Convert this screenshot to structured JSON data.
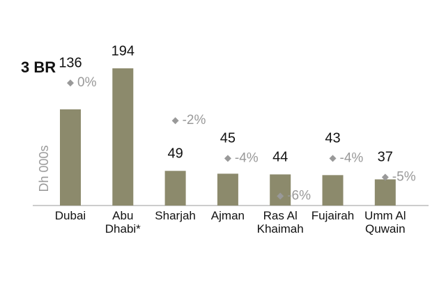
{
  "chart_data": {
    "type": "bar",
    "title": "3 BR",
    "y_label": "Dh 000s",
    "categories": [
      "Dubai",
      "Abu\nDhabi*",
      "Sharjah",
      "Ajman",
      "Ras Al\nKhaimah",
      "Fujairah",
      "Umm Al\nQuwain"
    ],
    "series": [
      {
        "values": [
          136,
          194,
          49,
          45,
          44,
          43,
          37
        ],
        "color": "#8c8a6c"
      },
      {
        "values": [
          0,
          null,
          -2,
          -4,
          -6,
          -4,
          -5
        ],
        "value_labels": [
          "0%",
          null,
          "-2%",
          "-4%",
          "-6%",
          "-4%",
          "-5%"
        ],
        "color": "#999999",
        "axis": "y2"
      }
    ],
    "ylim": [
      0,
      200
    ],
    "y2lim": [
      -6.5,
      1
    ]
  }
}
